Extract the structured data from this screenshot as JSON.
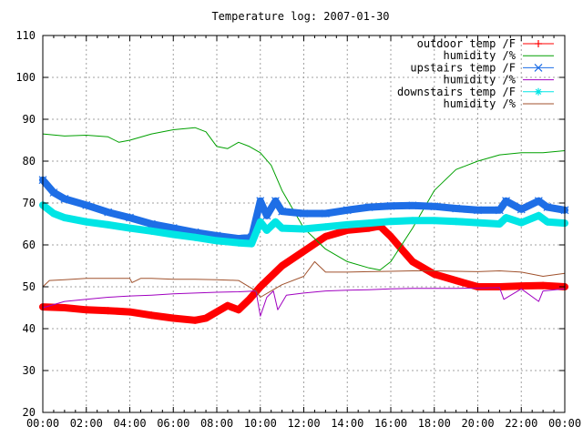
{
  "chart_data": {
    "type": "line",
    "title": "Temperature log: 2007-01-30",
    "xlabel": "",
    "ylabel": "",
    "xlim": [
      0,
      24
    ],
    "ylim": [
      20,
      110
    ],
    "grid": true,
    "legend_position": "top-right",
    "x_ticks": [
      {
        "value": 0,
        "label": "00:00"
      },
      {
        "value": 2,
        "label": "02:00"
      },
      {
        "value": 4,
        "label": "04:00"
      },
      {
        "value": 6,
        "label": "06:00"
      },
      {
        "value": 8,
        "label": "08:00"
      },
      {
        "value": 10,
        "label": "10:00"
      },
      {
        "value": 12,
        "label": "12:00"
      },
      {
        "value": 14,
        "label": "14:00"
      },
      {
        "value": 16,
        "label": "16:00"
      },
      {
        "value": 18,
        "label": "18:00"
      },
      {
        "value": 20,
        "label": "20:00"
      },
      {
        "value": 22,
        "label": "22:00"
      },
      {
        "value": 24,
        "label": "00:00"
      }
    ],
    "y_ticks": [
      {
        "value": 20,
        "label": "20"
      },
      {
        "value": 30,
        "label": "30"
      },
      {
        "value": 40,
        "label": "40"
      },
      {
        "value": 50,
        "label": "50"
      },
      {
        "value": 60,
        "label": "60"
      },
      {
        "value": 70,
        "label": "70"
      },
      {
        "value": 80,
        "label": "80"
      },
      {
        "value": 90,
        "label": "90"
      },
      {
        "value": 100,
        "label": "100"
      },
      {
        "value": 110,
        "label": "110"
      }
    ],
    "series": [
      {
        "name": "outdoor temp /F",
        "color": "#ff0000",
        "marker": "plus",
        "thick": true,
        "x": [
          0,
          1,
          2,
          3,
          4,
          5,
          6,
          7,
          7.5,
          8,
          8.5,
          9,
          9.5,
          10,
          11,
          12,
          13,
          14,
          15,
          15.5,
          16,
          16.5,
          17,
          18,
          19,
          20,
          21,
          22,
          23,
          24
        ],
        "y": [
          45.2,
          45.0,
          44.5,
          44.3,
          44.0,
          43.2,
          42.5,
          42.0,
          42.5,
          44.0,
          45.5,
          44.5,
          47.0,
          50.0,
          55.0,
          58.5,
          62.0,
          63.5,
          64.0,
          64.5,
          62.0,
          59.0,
          56.0,
          53.0,
          51.5,
          50.0,
          50.0,
          50.2,
          50.3,
          50.0
        ]
      },
      {
        "name": "humidity /%",
        "color": "#00a000",
        "marker": "none",
        "thick": false,
        "x": [
          0,
          1,
          2,
          3,
          3.5,
          4,
          5,
          6,
          7,
          7.5,
          8,
          8.5,
          9,
          9.5,
          10,
          10.5,
          11,
          12,
          13,
          14,
          15,
          15.5,
          16,
          17,
          18,
          19,
          20,
          21,
          22,
          23,
          24
        ],
        "y": [
          86.5,
          86.0,
          86.2,
          85.8,
          84.5,
          85.0,
          86.5,
          87.5,
          88.0,
          87.0,
          83.5,
          83.0,
          84.5,
          83.5,
          82.0,
          79.0,
          73.0,
          64.0,
          59.0,
          56.0,
          54.5,
          54.0,
          56.0,
          64.0,
          73.0,
          78.0,
          80.0,
          81.5,
          82.0,
          82.0,
          82.5
        ]
      },
      {
        "name": "upstairs temp /F",
        "color": "#1e6ee6",
        "marker": "x",
        "thick": true,
        "x": [
          0,
          0.5,
          1,
          2,
          3,
          4,
          5,
          6,
          7,
          8,
          9,
          9.6,
          10,
          10.3,
          10.7,
          11,
          12,
          13,
          14,
          15,
          16,
          17,
          18,
          19,
          20,
          21,
          21.3,
          22,
          22.8,
          23.2,
          24
        ],
        "y": [
          75.5,
          72.5,
          71.0,
          69.5,
          67.8,
          66.5,
          65.0,
          64.0,
          63.0,
          62.2,
          61.5,
          61.8,
          70.5,
          67.0,
          70.5,
          68.0,
          67.5,
          67.5,
          68.3,
          69.0,
          69.3,
          69.4,
          69.2,
          68.7,
          68.3,
          68.3,
          70.5,
          68.5,
          70.5,
          69.0,
          68.3
        ]
      },
      {
        "name": "humidity /%",
        "color": "#a000c0",
        "marker": "none",
        "thick": false,
        "x": [
          0,
          1,
          2,
          3,
          4,
          5,
          6,
          7,
          8,
          9,
          9.8,
          10,
          10.3,
          10.6,
          10.8,
          11.2,
          12,
          13,
          14,
          15,
          16,
          17,
          18,
          19,
          20,
          21,
          21.2,
          22,
          22.8,
          23,
          24
        ],
        "y": [
          45.0,
          46.5,
          47.0,
          47.5,
          47.8,
          48.0,
          48.3,
          48.5,
          48.7,
          48.8,
          49.0,
          43.0,
          47.5,
          49.0,
          44.5,
          48.0,
          48.5,
          49.0,
          49.2,
          49.3,
          49.5,
          49.6,
          49.6,
          49.6,
          49.7,
          49.8,
          47.0,
          49.5,
          46.5,
          49.0,
          49.5
        ]
      },
      {
        "name": "downstairs temp /F",
        "color": "#00e5e5",
        "marker": "star",
        "thick": true,
        "x": [
          0,
          0.5,
          1,
          2,
          3,
          4,
          5,
          6,
          7,
          8,
          9,
          9.6,
          10,
          10.3,
          10.7,
          11,
          12,
          13,
          14,
          15,
          16,
          17,
          18,
          19,
          20,
          21,
          21.3,
          22,
          22.8,
          23.2,
          24
        ],
        "y": [
          69.5,
          67.5,
          66.5,
          65.5,
          64.8,
          64.0,
          63.3,
          62.5,
          61.8,
          61.0,
          60.5,
          60.3,
          65.5,
          63.5,
          65.5,
          64.0,
          63.8,
          64.3,
          64.8,
          65.2,
          65.6,
          65.8,
          65.8,
          65.6,
          65.3,
          65.0,
          66.5,
          65.3,
          67.0,
          65.5,
          65.2
        ]
      },
      {
        "name": "humidity /%",
        "color": "#a0522d",
        "marker": "none",
        "thick": false,
        "x": [
          0,
          0.3,
          1,
          2,
          3,
          4,
          4.1,
          4.5,
          5,
          6,
          7,
          8,
          9,
          9.8,
          10,
          10.5,
          11,
          12,
          12.5,
          13,
          14,
          15,
          16,
          17,
          18,
          19,
          20,
          21,
          22,
          23,
          24
        ],
        "y": [
          50.0,
          51.5,
          51.7,
          52.0,
          52.0,
          52.0,
          51.0,
          52.0,
          52.0,
          51.8,
          51.8,
          51.7,
          51.5,
          49.0,
          47.5,
          49.0,
          50.5,
          52.5,
          56.0,
          53.5,
          53.5,
          53.6,
          53.7,
          53.8,
          53.8,
          53.7,
          53.6,
          53.8,
          53.5,
          52.5,
          53.2
        ]
      }
    ]
  }
}
